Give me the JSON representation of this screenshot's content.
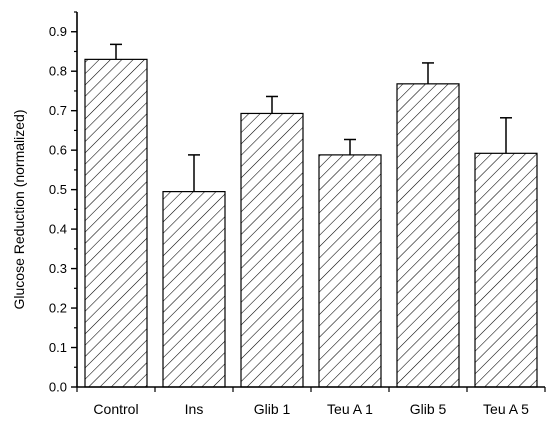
{
  "chart_data": {
    "type": "bar",
    "categories": [
      "Control",
      "Ins",
      "Glib 1",
      "Teu A 1",
      "Glib 5",
      "Teu A 5"
    ],
    "values": [
      0.83,
      0.495,
      0.693,
      0.588,
      0.768,
      0.592
    ],
    "errors": [
      0.038,
      0.093,
      0.043,
      0.039,
      0.053,
      0.09
    ],
    "title": "",
    "xlabel": "",
    "ylabel": "Glucose Reduction (normalized)",
    "ylim": [
      0,
      0.95
    ],
    "yticks": [
      "0.0",
      "0.1",
      "0.2",
      "0.3",
      "0.4",
      "0.5",
      "0.6",
      "0.7",
      "0.8",
      "0.9"
    ],
    "grid": false,
    "fill_pattern": "diagonal-hatch",
    "bar_color": "#000000"
  }
}
